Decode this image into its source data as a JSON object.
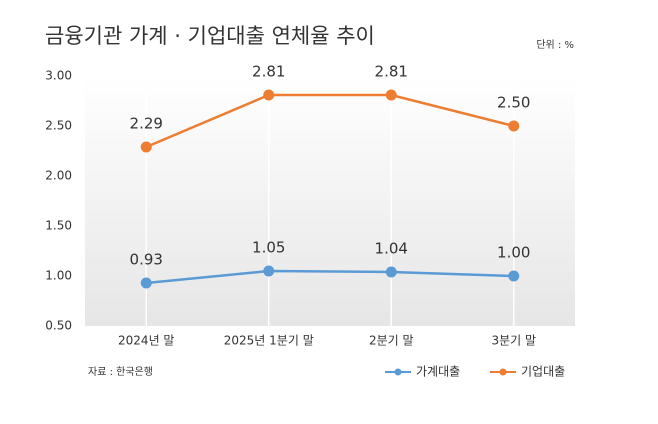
{
  "chart_data": {
    "type": "line",
    "title": "금융기관 가계 · 기업대출 연체율 추이",
    "unit": "단위 : %",
    "source": "자료 : 한국은행",
    "categories": [
      "2024년 말",
      "2025년 1분기 말",
      "2분기 말",
      "3분기 말"
    ],
    "series": [
      {
        "name": "가계대출",
        "color": "#5b9bd5",
        "values": [
          0.93,
          1.05,
          1.04,
          1
        ],
        "value_labels": [
          "0.93",
          "1.05",
          "1.04",
          "1.00"
        ]
      },
      {
        "name": "기업대출",
        "color": "#ed7d31",
        "values": [
          2.29,
          2.81,
          2.81,
          2.5
        ],
        "value_labels": [
          "2.29",
          "2.81",
          "2.81",
          "2.50"
        ]
      }
    ],
    "ylim": [
      0.5,
      3
    ],
    "yticks": [
      {
        "value": 0.5,
        "label": "0.50"
      },
      {
        "value": 1,
        "label": "1.00"
      },
      {
        "value": 1.5,
        "label": "1.50"
      },
      {
        "value": 2,
        "label": "2.00"
      },
      {
        "value": 2.5,
        "label": "2.50"
      },
      {
        "value": 3,
        "label": "3.00"
      }
    ],
    "legend": "bottom-right"
  }
}
